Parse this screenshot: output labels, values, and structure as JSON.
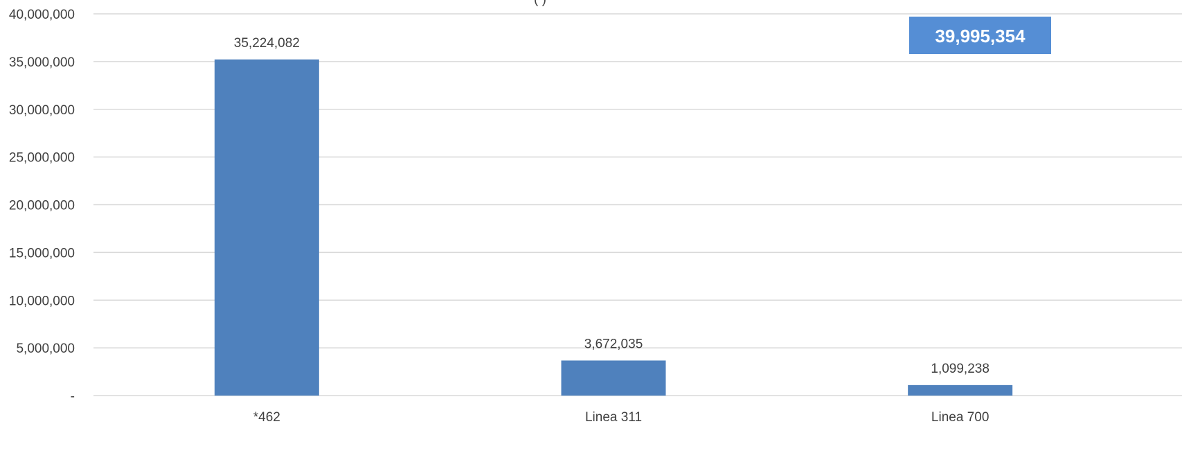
{
  "chart_data": {
    "type": "bar",
    "title": "",
    "title_fragment": "(                    )",
    "categories": [
      "*462",
      "Linea 311",
      "Linea 700"
    ],
    "values": [
      35224082,
      3672035,
      1099238
    ],
    "data_labels": [
      "35,224,082",
      "3,672,035",
      "1,099,238"
    ],
    "total_label": "39,995,354",
    "xlabel": "",
    "ylabel": "",
    "ylim": [
      0,
      40000000
    ],
    "yticks": [
      0,
      5000000,
      10000000,
      15000000,
      20000000,
      25000000,
      30000000,
      35000000,
      40000000
    ],
    "ytick_labels": [
      "-",
      "5,000,000",
      "10,000,000",
      "15,000,000",
      "20,000,000",
      "25,000,000",
      "30,000,000",
      "35,000,000",
      "40,000,000"
    ],
    "grid": true,
    "legend": "none",
    "colors": {
      "bar": "#4f81bd",
      "total_box": "#558ed5",
      "grid": "#d9d9d9",
      "text": "#404040"
    }
  }
}
